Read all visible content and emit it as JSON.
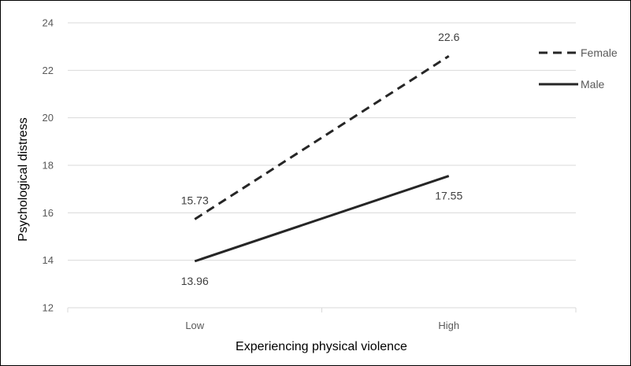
{
  "chart_data": {
    "type": "line",
    "categories": [
      "Low",
      "High"
    ],
    "series": [
      {
        "name": "Female",
        "values": [
          15.73,
          22.6
        ],
        "labels": [
          "15.73",
          "22.6"
        ],
        "color": "#262626",
        "dash": "dashed"
      },
      {
        "name": "Male",
        "values": [
          13.96,
          17.55
        ],
        "labels": [
          "13.96",
          "17.55"
        ],
        "color": "#262626",
        "dash": "solid"
      }
    ],
    "xlabel": "Experiencing physical violence",
    "ylabel": "Psychological distress",
    "ylim": [
      12,
      24
    ],
    "yticks": [
      "12",
      "14",
      "16",
      "18",
      "20",
      "22",
      "24"
    ],
    "grid": true,
    "legend_position": "top-right",
    "grid_color": "#d9d9d9"
  }
}
